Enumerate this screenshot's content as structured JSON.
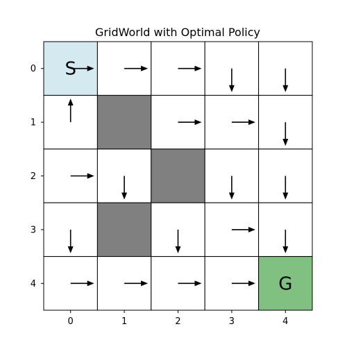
{
  "figure": {
    "title": "GridWorld with Optimal Policy"
  },
  "grid": {
    "rows": 5,
    "cols": 5,
    "x_ticks": [
      "0",
      "1",
      "2",
      "3",
      "4"
    ],
    "y_ticks": [
      "0",
      "1",
      "2",
      "3",
      "4"
    ],
    "colors": {
      "background": "#ffffff",
      "start": "#d5e9f0",
      "goal": "#80c080",
      "obstacle": "#808080",
      "gridline": "#000000",
      "arrow": "#000000"
    },
    "start": {
      "row": 0,
      "col": 0,
      "label": "S"
    },
    "goal": {
      "row": 4,
      "col": 4,
      "label": "G"
    },
    "obstacles": [
      {
        "row": 1,
        "col": 1
      },
      {
        "row": 2,
        "col": 2
      },
      {
        "row": 3,
        "col": 1
      }
    ],
    "policy": [
      [
        "right",
        "right",
        "right",
        "down",
        "down"
      ],
      [
        "up",
        null,
        "right",
        "right",
        "down"
      ],
      [
        "right",
        "down",
        null,
        "down",
        "down"
      ],
      [
        "down",
        null,
        "down",
        "right",
        "down"
      ],
      [
        "right",
        "right",
        "right",
        "right",
        null
      ]
    ]
  }
}
